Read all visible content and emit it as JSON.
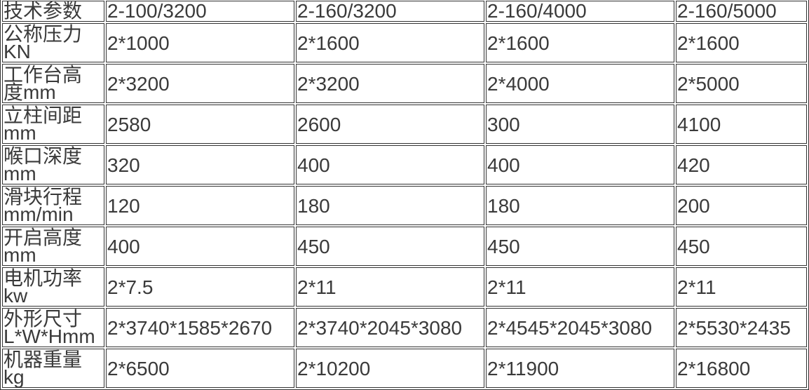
{
  "header": [
    "技术参数",
    "2-100/3200",
    "2-160/3200",
    "2-160/4000",
    "2-160/5000"
  ],
  "rows": [
    {
      "label": [
        "公称压力",
        "KN"
      ],
      "values": [
        "2*1000",
        "2*1600",
        "2*1600",
        "2*1600"
      ]
    },
    {
      "label": [
        "工作台高",
        "度mm"
      ],
      "values": [
        "2*3200",
        "2*3200",
        "2*4000",
        "2*5000"
      ]
    },
    {
      "label": [
        "立柱间距",
        "mm"
      ],
      "values": [
        "2580",
        "2600",
        "300",
        "4100"
      ]
    },
    {
      "label": [
        "喉口深度",
        "mm"
      ],
      "values": [
        "320",
        "400",
        "400",
        "420"
      ]
    },
    {
      "label": [
        "滑块行程",
        "mm/min"
      ],
      "values": [
        "120",
        "180",
        "180",
        "200"
      ]
    },
    {
      "label": [
        "开启高度",
        "mm"
      ],
      "values": [
        "400",
        "450",
        "450",
        "450"
      ]
    },
    {
      "label": [
        "电机功率",
        "kw"
      ],
      "values": [
        "2*7.5",
        "2*11",
        "2*11",
        "2*11"
      ]
    },
    {
      "label": [
        "外形尺寸",
        "L*W*Hmm"
      ],
      "values": [
        "2*3740*1585*2670",
        "2*3740*2045*3080",
        "2*4545*2045*3080",
        "2*5530*2435"
      ]
    },
    {
      "label": [
        "机器重量",
        "kg"
      ],
      "values": [
        "2*6500",
        "2*10200",
        "2*11900",
        "2*16800"
      ]
    }
  ]
}
